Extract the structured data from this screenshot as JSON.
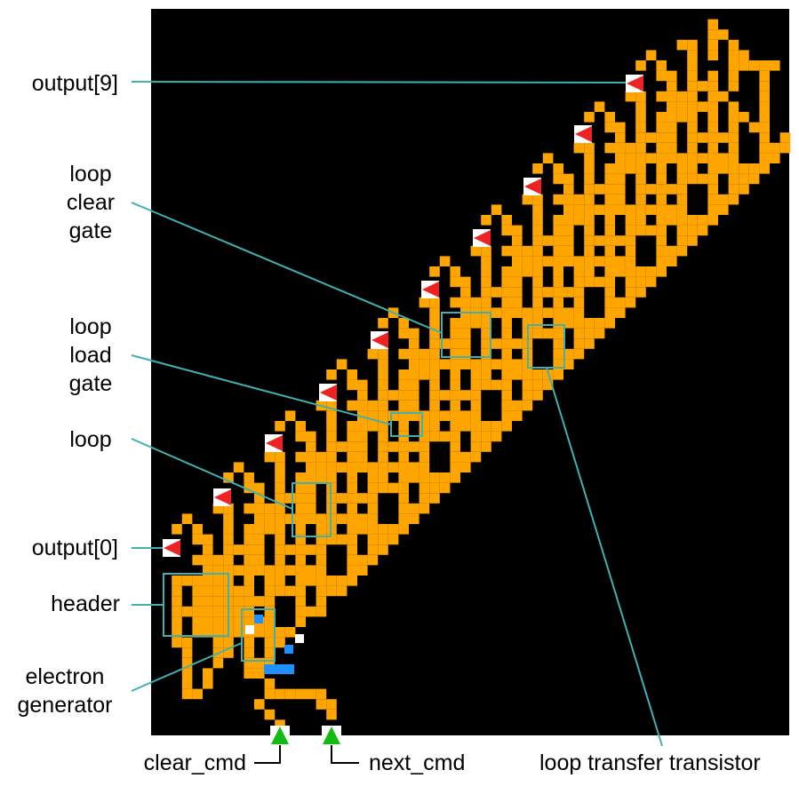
{
  "labels": {
    "output9": "output[9]",
    "loop_clear_gate": "loop\nclear\ngate",
    "loop_load_gate": "loop\nload\ngate",
    "loop": "loop",
    "output0": "output[0]",
    "header": "header",
    "electron_generator": "electron\ngenerator",
    "clear_cmd": "clear_cmd",
    "next_cmd": "next_cmd",
    "loop_transfer_transistor": "loop transfer transistor"
  },
  "colors": {
    "background": "#000000",
    "wire": "#FFA500",
    "callout": "#40B0B0",
    "output_marker": "#EE2222",
    "input_marker": "#11BB11",
    "electron": "#1E90FF",
    "hole": "#FFFFFF"
  }
}
